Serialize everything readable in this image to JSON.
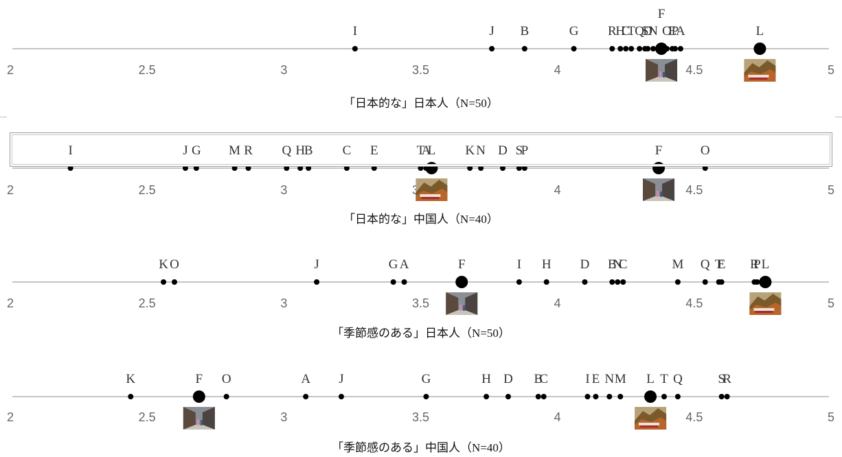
{
  "chart_data": [
    {
      "type": "scatter",
      "title": "「日本的な」日本人（N=50）",
      "xlim": [
        2,
        5
      ],
      "tick_labels": [
        "2",
        "2.5",
        "3",
        "3.5",
        "4",
        "4.5",
        "5"
      ],
      "tick_values": [
        2,
        2.5,
        3,
        3.5,
        4,
        4.5,
        5
      ],
      "points": [
        {
          "label": "I",
          "x": 3.26
        },
        {
          "label": "J",
          "x": 3.76
        },
        {
          "label": "B",
          "x": 3.88
        },
        {
          "label": "G",
          "x": 4.06
        },
        {
          "label": "R",
          "x": 4.2
        },
        {
          "label": "H",
          "x": 4.23
        },
        {
          "label": "C",
          "x": 4.25
        },
        {
          "label": "T",
          "x": 4.27
        },
        {
          "label": "Q",
          "x": 4.3
        },
        {
          "label": "S",
          "x": 4.32
        },
        {
          "label": "D",
          "x": 4.33
        },
        {
          "label": "N",
          "x": 4.35
        },
        {
          "label": "F",
          "x": 4.38,
          "highlight": true,
          "image": "street-photo"
        },
        {
          "label": "O",
          "x": 4.4
        },
        {
          "label": "E",
          "x": 4.42
        },
        {
          "label": "P",
          "x": 4.43
        },
        {
          "label": "A",
          "x": 4.45
        },
        {
          "label": "L",
          "x": 4.74,
          "highlight": true,
          "image": "autumn-mountain-photo"
        }
      ]
    },
    {
      "type": "scatter",
      "title": "「日本的な」中国人（N=40）",
      "xlim": [
        2,
        5
      ],
      "tick_labels": [
        "2",
        "2.5",
        "3",
        "3.5",
        "4",
        "4.5",
        "5"
      ],
      "tick_values": [
        2,
        2.5,
        3,
        3.5,
        4,
        4.5,
        5
      ],
      "points": [
        {
          "label": "I",
          "x": 2.22
        },
        {
          "label": "J",
          "x": 2.64
        },
        {
          "label": "G",
          "x": 2.68
        },
        {
          "label": "M",
          "x": 2.82
        },
        {
          "label": "R",
          "x": 2.87
        },
        {
          "label": "Q",
          "x": 3.01
        },
        {
          "label": "H",
          "x": 3.06
        },
        {
          "label": "B",
          "x": 3.09
        },
        {
          "label": "C",
          "x": 3.23
        },
        {
          "label": "E",
          "x": 3.33
        },
        {
          "label": "T",
          "x": 3.5
        },
        {
          "label": "A",
          "x": 3.52
        },
        {
          "label": "L",
          "x": 3.54,
          "highlight": true,
          "image": "autumn-mountain-photo"
        },
        {
          "label": "K",
          "x": 3.68
        },
        {
          "label": "N",
          "x": 3.72
        },
        {
          "label": "D",
          "x": 3.8
        },
        {
          "label": "S",
          "x": 3.86
        },
        {
          "label": "P",
          "x": 3.88
        },
        {
          "label": "F",
          "x": 4.37,
          "highlight": true,
          "image": "street-photo"
        },
        {
          "label": "O",
          "x": 4.54
        }
      ]
    },
    {
      "type": "scatter",
      "title": "「季節感のある」日本人（N=50）",
      "xlim": [
        2,
        5
      ],
      "tick_labels": [
        "2",
        "2.5",
        "3",
        "3.5",
        "4",
        "4.5",
        "5"
      ],
      "tick_values": [
        2,
        2.5,
        3,
        3.5,
        4,
        4.5,
        5
      ],
      "points": [
        {
          "label": "K",
          "x": 2.56
        },
        {
          "label": "O",
          "x": 2.6
        },
        {
          "label": "J",
          "x": 3.12
        },
        {
          "label": "G",
          "x": 3.4
        },
        {
          "label": "A",
          "x": 3.44
        },
        {
          "label": "F",
          "x": 3.65,
          "highlight": true,
          "image": "street-photo"
        },
        {
          "label": "I",
          "x": 3.86
        },
        {
          "label": "H",
          "x": 3.96
        },
        {
          "label": "D",
          "x": 4.1
        },
        {
          "label": "B",
          "x": 4.2
        },
        {
          "label": "N",
          "x": 4.22
        },
        {
          "label": "C",
          "x": 4.24
        },
        {
          "label": "M",
          "x": 4.44
        },
        {
          "label": "Q",
          "x": 4.54
        },
        {
          "label": "T",
          "x": 4.59
        },
        {
          "label": "E",
          "x": 4.6
        },
        {
          "label": "R",
          "x": 4.72
        },
        {
          "label": "P",
          "x": 4.73
        },
        {
          "label": "L",
          "x": 4.76,
          "highlight": true,
          "image": "autumn-mountain-photo"
        }
      ]
    },
    {
      "type": "scatter",
      "title": "「季節感のある」中国人（N=40）",
      "xlim": [
        2,
        5
      ],
      "tick_labels": [
        "2",
        "2.5",
        "3",
        "3.5",
        "4",
        "4.5",
        "5"
      ],
      "tick_values": [
        2,
        2.5,
        3,
        3.5,
        4,
        4.5,
        5
      ],
      "points": [
        {
          "label": "K",
          "x": 2.44
        },
        {
          "label": "F",
          "x": 2.69,
          "highlight": true,
          "image": "street-photo"
        },
        {
          "label": "O",
          "x": 2.79
        },
        {
          "label": "A",
          "x": 3.08
        },
        {
          "label": "J",
          "x": 3.21
        },
        {
          "label": "G",
          "x": 3.52
        },
        {
          "label": "H",
          "x": 3.74
        },
        {
          "label": "D",
          "x": 3.82
        },
        {
          "label": "B",
          "x": 3.93
        },
        {
          "label": "C",
          "x": 3.95
        },
        {
          "label": "I",
          "x": 4.11
        },
        {
          "label": "E",
          "x": 4.14
        },
        {
          "label": "N",
          "x": 4.19
        },
        {
          "label": "M",
          "x": 4.23
        },
        {
          "label": "L",
          "x": 4.34,
          "highlight": true,
          "image": "autumn-mountain-photo"
        },
        {
          "label": "T",
          "x": 4.39
        },
        {
          "label": "Q",
          "x": 4.44
        },
        {
          "label": "S",
          "x": 4.6
        },
        {
          "label": "R",
          "x": 4.62
        }
      ]
    }
  ],
  "colors": {
    "axis": "#c4c4c4",
    "point": "#000000",
    "tick_label": "#666666",
    "point_label": "#333333"
  }
}
